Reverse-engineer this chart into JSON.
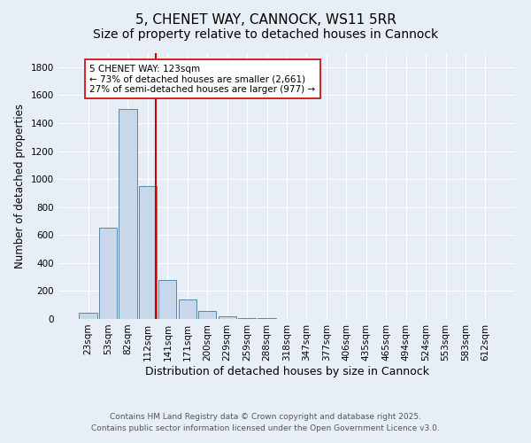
{
  "title": "5, CHENET WAY, CANNOCK, WS11 5RR",
  "subtitle": "Size of property relative to detached houses in Cannock",
  "xlabel": "Distribution of detached houses by size in Cannock",
  "ylabel": "Number of detached properties",
  "bar_labels": [
    "23sqm",
    "53sqm",
    "82sqm",
    "112sqm",
    "141sqm",
    "171sqm",
    "200sqm",
    "229sqm",
    "259sqm",
    "288sqm",
    "318sqm",
    "347sqm",
    "377sqm",
    "406sqm",
    "435sqm",
    "465sqm",
    "494sqm",
    "524sqm",
    "553sqm",
    "583sqm",
    "612sqm"
  ],
  "bar_values": [
    45,
    650,
    1500,
    950,
    280,
    140,
    60,
    20,
    8,
    4,
    2,
    1,
    1,
    1,
    0,
    0,
    0,
    0,
    0,
    0,
    0
  ],
  "bar_color": "#c8d8ea",
  "bar_edge_color": "#5588aa",
  "property_line_color": "#cc0000",
  "annotation_text": "5 CHENET WAY: 123sqm\n← 73% of detached houses are smaller (2,661)\n27% of semi-detached houses are larger (977) →",
  "annotation_box_facecolor": "#ffffff",
  "annotation_box_edgecolor": "#cc0000",
  "ylim": [
    0,
    1900
  ],
  "yticks": [
    0,
    200,
    400,
    600,
    800,
    1000,
    1200,
    1400,
    1600,
    1800
  ],
  "background_color": "#e8eef5",
  "plot_bg_color": "#e8eef5",
  "footer_text": "Contains HM Land Registry data © Crown copyright and database right 2025.\nContains public sector information licensed under the Open Government Licence v3.0.",
  "title_fontsize": 11,
  "subtitle_fontsize": 10,
  "xlabel_fontsize": 9,
  "ylabel_fontsize": 8.5,
  "tick_fontsize": 7.5,
  "annotation_fontsize": 7.5,
  "footer_fontsize": 6.5
}
